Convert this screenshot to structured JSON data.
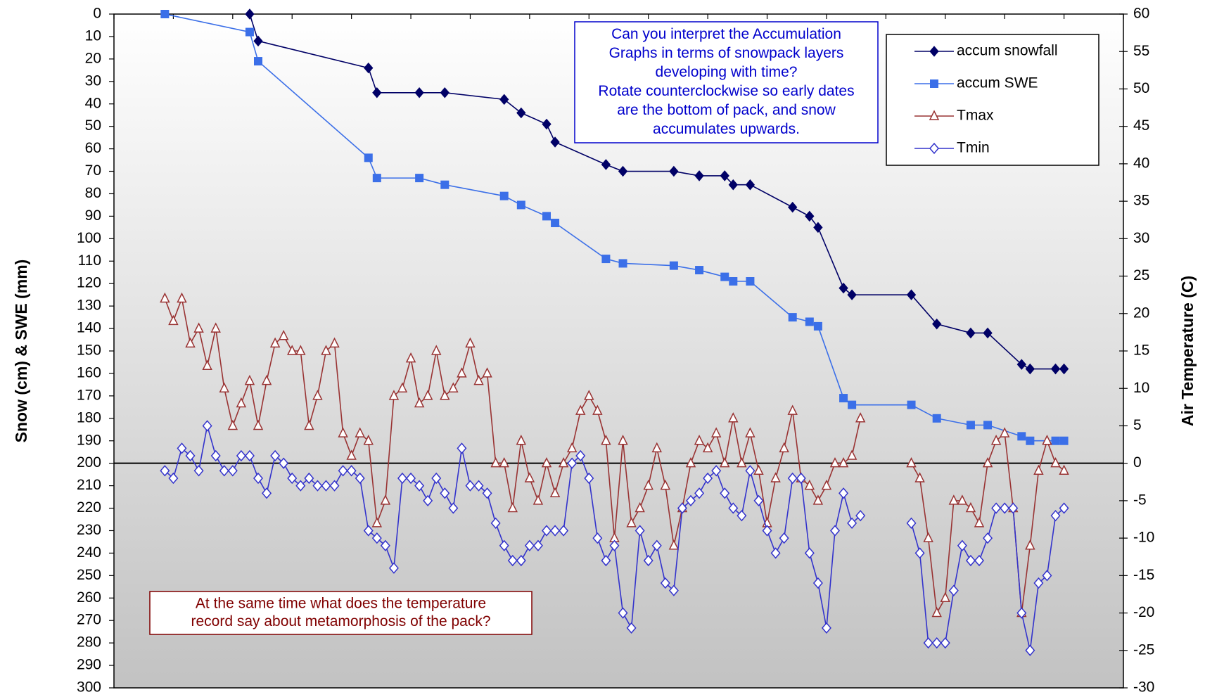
{
  "chart_data": {
    "type": "line",
    "ylabel": "Snow (cm)  & SWE (mm)",
    "y2label": "Air Temperature (C)",
    "xlim": [
      0,
      119
    ],
    "xticks": [
      0,
      7,
      14,
      21,
      28,
      35,
      42,
      49,
      56,
      63,
      70,
      77,
      84,
      91,
      98,
      105,
      112,
      119
    ],
    "ylim": [
      0,
      300
    ],
    "yinvert": true,
    "yticks": [
      0,
      10,
      20,
      30,
      40,
      50,
      60,
      70,
      80,
      90,
      100,
      110,
      120,
      130,
      140,
      150,
      160,
      170,
      180,
      190,
      200,
      210,
      220,
      230,
      240,
      250,
      260,
      270,
      280,
      290,
      300
    ],
    "y2lim": [
      -30,
      60
    ],
    "y2ticks": [
      -30,
      -25,
      -20,
      -15,
      -10,
      -5,
      0,
      5,
      10,
      15,
      20,
      25,
      30,
      35,
      40,
      45,
      50,
      55,
      60
    ],
    "legend": "top-right",
    "series": [
      {
        "name": "accum snowfall",
        "color": "#000066",
        "marker": "diamond-filled",
        "x": [
          16,
          17,
          30,
          31,
          36,
          39,
          46,
          48,
          51,
          52,
          58,
          60,
          66,
          69,
          72,
          73,
          75,
          80,
          82,
          83,
          86,
          87,
          94,
          97,
          101,
          103,
          107,
          108,
          111,
          112
        ],
        "values": [
          0,
          12,
          24,
          35,
          35,
          35,
          38,
          44,
          49,
          57,
          67,
          70,
          70,
          72,
          72,
          76,
          76,
          86,
          90,
          95,
          122,
          125,
          125,
          138,
          142,
          142,
          156,
          158,
          158,
          158
        ]
      },
      {
        "name": "accum SWE",
        "color": "#3b6fe8",
        "marker": "square-filled",
        "x": [
          6,
          16,
          17,
          30,
          31,
          36,
          39,
          46,
          48,
          51,
          52,
          58,
          60,
          66,
          69,
          72,
          73,
          75,
          80,
          82,
          83,
          86,
          87,
          94,
          97,
          101,
          103,
          107,
          108,
          111,
          112
        ],
        "values": [
          0,
          8,
          21,
          64,
          73,
          73,
          76,
          81,
          85,
          90,
          93,
          109,
          111,
          112,
          114,
          117,
          119,
          119,
          135,
          137,
          139,
          171,
          174,
          174,
          180,
          183,
          183,
          188,
          190,
          190,
          190
        ]
      },
      {
        "name": "Tmax",
        "color": "#993333",
        "marker": "triangle-open",
        "axis": "y2",
        "x": [
          6,
          7,
          8,
          9,
          10,
          11,
          12,
          13,
          14,
          15,
          16,
          17,
          18,
          19,
          20,
          21,
          22,
          23,
          24,
          25,
          26,
          27,
          28,
          29,
          30,
          31,
          32,
          33,
          34,
          35,
          36,
          37,
          38,
          39,
          40,
          41,
          42,
          43,
          44,
          45,
          46,
          47,
          48,
          49,
          50,
          51,
          52,
          53,
          54,
          55,
          56,
          57,
          58,
          59,
          60,
          61,
          62,
          63,
          64,
          65,
          66,
          67,
          68,
          69,
          70,
          71,
          72,
          73,
          74,
          75,
          76,
          77,
          78,
          79,
          80,
          81,
          82,
          83,
          84,
          85,
          86,
          87,
          88,
          89,
          90,
          91,
          92,
          93,
          94,
          95,
          96,
          97,
          98,
          99,
          100,
          101,
          102,
          103,
          104,
          105,
          106,
          107,
          108,
          109,
          110,
          111,
          112
        ],
        "values": [
          22,
          19,
          22,
          16,
          18,
          13,
          18,
          10,
          5,
          8,
          11,
          5,
          11,
          16,
          17,
          15,
          15,
          5,
          9,
          15,
          16,
          4,
          1,
          4,
          3,
          -8,
          -5,
          9,
          10,
          14,
          8,
          9,
          15,
          9,
          10,
          12,
          16,
          11,
          12,
          0,
          0,
          -6,
          3,
          -2,
          -5,
          0,
          -4,
          0,
          2,
          7,
          9,
          7,
          3,
          -10,
          3,
          -8,
          -6,
          -3,
          2,
          -3,
          -11,
          -6,
          0,
          3,
          2,
          4,
          0,
          6,
          0,
          4,
          -1,
          -8,
          -2,
          2,
          7,
          -2,
          -3,
          -5,
          -3,
          0,
          0,
          1,
          6,
          null,
          null,
          null,
          null,
          null,
          0,
          -2,
          -10,
          -20,
          -18,
          -5,
          -5,
          -6,
          -8,
          0,
          3,
          4,
          -6,
          -20,
          -11,
          -1,
          3,
          0,
          -1
        ]
      },
      {
        "name": "Tmin",
        "color": "#3333cc",
        "marker": "diamond-open",
        "axis": "y2",
        "x": [
          6,
          7,
          8,
          9,
          10,
          11,
          12,
          13,
          14,
          15,
          16,
          17,
          18,
          19,
          20,
          21,
          22,
          23,
          24,
          25,
          26,
          27,
          28,
          29,
          30,
          31,
          32,
          33,
          34,
          35,
          36,
          37,
          38,
          39,
          40,
          41,
          42,
          43,
          44,
          45,
          46,
          47,
          48,
          49,
          50,
          51,
          52,
          53,
          54,
          55,
          56,
          57,
          58,
          59,
          60,
          61,
          62,
          63,
          64,
          65,
          66,
          67,
          68,
          69,
          70,
          71,
          72,
          73,
          74,
          75,
          76,
          77,
          78,
          79,
          80,
          81,
          82,
          83,
          84,
          85,
          86,
          87,
          88,
          89,
          90,
          91,
          92,
          93,
          94,
          95,
          96,
          97,
          98,
          99,
          100,
          101,
          102,
          103,
          104,
          105,
          106,
          107,
          108,
          109,
          110,
          111,
          112
        ],
        "values": [
          -1,
          -2,
          2,
          1,
          -1,
          5,
          1,
          -1,
          -1,
          1,
          1,
          -2,
          -4,
          1,
          0,
          -2,
          -3,
          -2,
          -3,
          -3,
          -3,
          -1,
          -1,
          -2,
          -9,
          -10,
          -11,
          -14,
          -2,
          -2,
          -3,
          -5,
          -2,
          -4,
          -6,
          2,
          -3,
          -3,
          -4,
          -8,
          -11,
          -13,
          -13,
          -11,
          -11,
          -9,
          -9,
          -9,
          0,
          1,
          -2,
          -10,
          -13,
          -11,
          -20,
          -22,
          -9,
          -13,
          -11,
          -16,
          -17,
          -6,
          -5,
          -4,
          -2,
          -1,
          -4,
          -6,
          -7,
          -1,
          -5,
          -9,
          -12,
          -10,
          -2,
          -2,
          -12,
          -16,
          -22,
          -9,
          -4,
          -8,
          -7,
          null,
          null,
          null,
          null,
          null,
          -8,
          -12,
          -24,
          -24,
          -24,
          -17,
          -11,
          -13,
          -13,
          -10,
          -6,
          -6,
          -6,
          -20,
          -25,
          -16,
          -15,
          -7,
          -6
        ]
      }
    ],
    "annotations": [
      {
        "lines": [
          "Can you interpret the Accumulation",
          "Graphs in terms of snowpack layers",
          "developing with time?",
          "Rotate counterclockwise so early dates",
          "are the bottom of pack, and snow",
          "accumulates upwards."
        ],
        "color": "#0000cc"
      },
      {
        "lines": [
          "At the same time what does the temperature",
          "record say about metamorphosis of the pack?"
        ],
        "color": "#800000"
      }
    ]
  }
}
